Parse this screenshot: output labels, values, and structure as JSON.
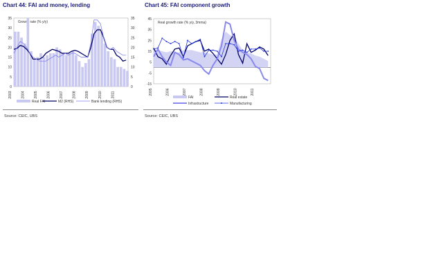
{
  "chart_data": [
    {
      "type": "bar+line",
      "title": "Chart 44: FAI and money, lending",
      "annotation": "Growth rate (% y/y)",
      "xlim": [
        2003,
        2011.9
      ],
      "x_ticks": [
        "2003",
        "2004",
        "2005",
        "2006",
        "2007",
        "2008",
        "2009",
        "2010",
        "2011"
      ],
      "ylim": [
        0,
        35
      ],
      "y_ticks": [
        "0",
        "5",
        "10",
        "15",
        "20",
        "25",
        "30",
        "35"
      ],
      "legend": "bottom",
      "x_start": 2003,
      "step": 0.25,
      "series": [
        {
          "name": "Real FAI",
          "kind": "bar",
          "color": "#c8c8f0",
          "values": [
            28,
            28,
            25,
            22,
            35,
            18,
            14,
            15,
            17,
            15,
            16,
            17,
            17,
            20,
            19,
            17,
            16,
            17,
            18,
            16,
            13,
            10,
            12,
            14,
            27,
            33,
            31,
            28,
            22,
            18,
            15,
            14,
            10,
            10,
            9,
            8
          ]
        },
        {
          "name": "M2 (RHS)",
          "kind": "line",
          "color": "#000066",
          "values": [
            19,
            19.5,
            21,
            20.5,
            19,
            17,
            14,
            14,
            14,
            15,
            17,
            18,
            19,
            18.5,
            18,
            17,
            17,
            17,
            18,
            18.5,
            18,
            17,
            16,
            15,
            20,
            27,
            29,
            29,
            25,
            20,
            19,
            19,
            16,
            15,
            13,
            13.5
          ]
        },
        {
          "name": "Bank lending (RHS)",
          "kind": "line",
          "color": "#8080ee",
          "values": [
            17,
            20,
            23,
            22,
            20,
            17,
            15,
            14,
            13,
            13,
            13,
            14,
            15,
            16,
            15,
            16,
            17,
            16,
            17,
            17,
            16,
            15,
            15,
            15,
            22,
            34,
            34,
            32,
            25,
            20,
            19,
            20,
            18,
            17,
            16,
            16
          ]
        }
      ],
      "source": "Source:  CEIC, UBS"
    },
    {
      "type": "area+line",
      "title": "Chart 45: FAI component growth",
      "annotation": "Real growth rate (% y/y, 3mma)",
      "xlim": [
        2005,
        2011.9
      ],
      "x_ticks": [
        "2005",
        "2006",
        "2007",
        "2008",
        "2009",
        "2010",
        "2011"
      ],
      "ylim": [
        -15,
        45
      ],
      "y_ticks": [
        "-15",
        "-5",
        "5",
        "15",
        "25",
        "35",
        "45"
      ],
      "legend": "bottom",
      "x_start": 2005,
      "step": 0.25,
      "series": [
        {
          "name": "FAI",
          "kind": "area",
          "color": "#c8c8f0",
          "values": [
            16,
            16,
            15,
            14,
            15,
            14,
            14,
            16,
            16,
            16,
            15,
            14,
            14,
            13,
            12,
            12,
            26,
            33,
            30,
            28,
            22,
            16,
            14,
            13,
            11,
            10,
            8,
            6
          ]
        },
        {
          "name": "Real estate",
          "kind": "line",
          "color": "#000066",
          "values": [
            18,
            10,
            8,
            3,
            11,
            17,
            18,
            10,
            20,
            22,
            24,
            25,
            15,
            17,
            13,
            8,
            3,
            12,
            25,
            31,
            12,
            4,
            22,
            14,
            16,
            19,
            17,
            11
          ]
        },
        {
          "name": "Infrastructure",
          "kind": "line",
          "color": "#8888ee",
          "values": [
            10,
            17,
            10,
            5,
            2,
            14,
            12,
            7,
            8,
            6,
            4,
            2,
            -3,
            -6,
            2,
            8,
            20,
            42,
            40,
            25,
            17,
            14,
            12,
            8,
            1,
            -1,
            -10,
            -12
          ]
        },
        {
          "name": "Manufacturing",
          "kind": "marker",
          "color": "#2233dd",
          "values": [
            17,
            18,
            27,
            24,
            22,
            24,
            22,
            9,
            25,
            22,
            24,
            26,
            10,
            16,
            16,
            15,
            10,
            22,
            22,
            21,
            15,
            16,
            14,
            17,
            17,
            18,
            15,
            15
          ]
        }
      ],
      "source": "Source:  CEIC, UBS"
    }
  ]
}
